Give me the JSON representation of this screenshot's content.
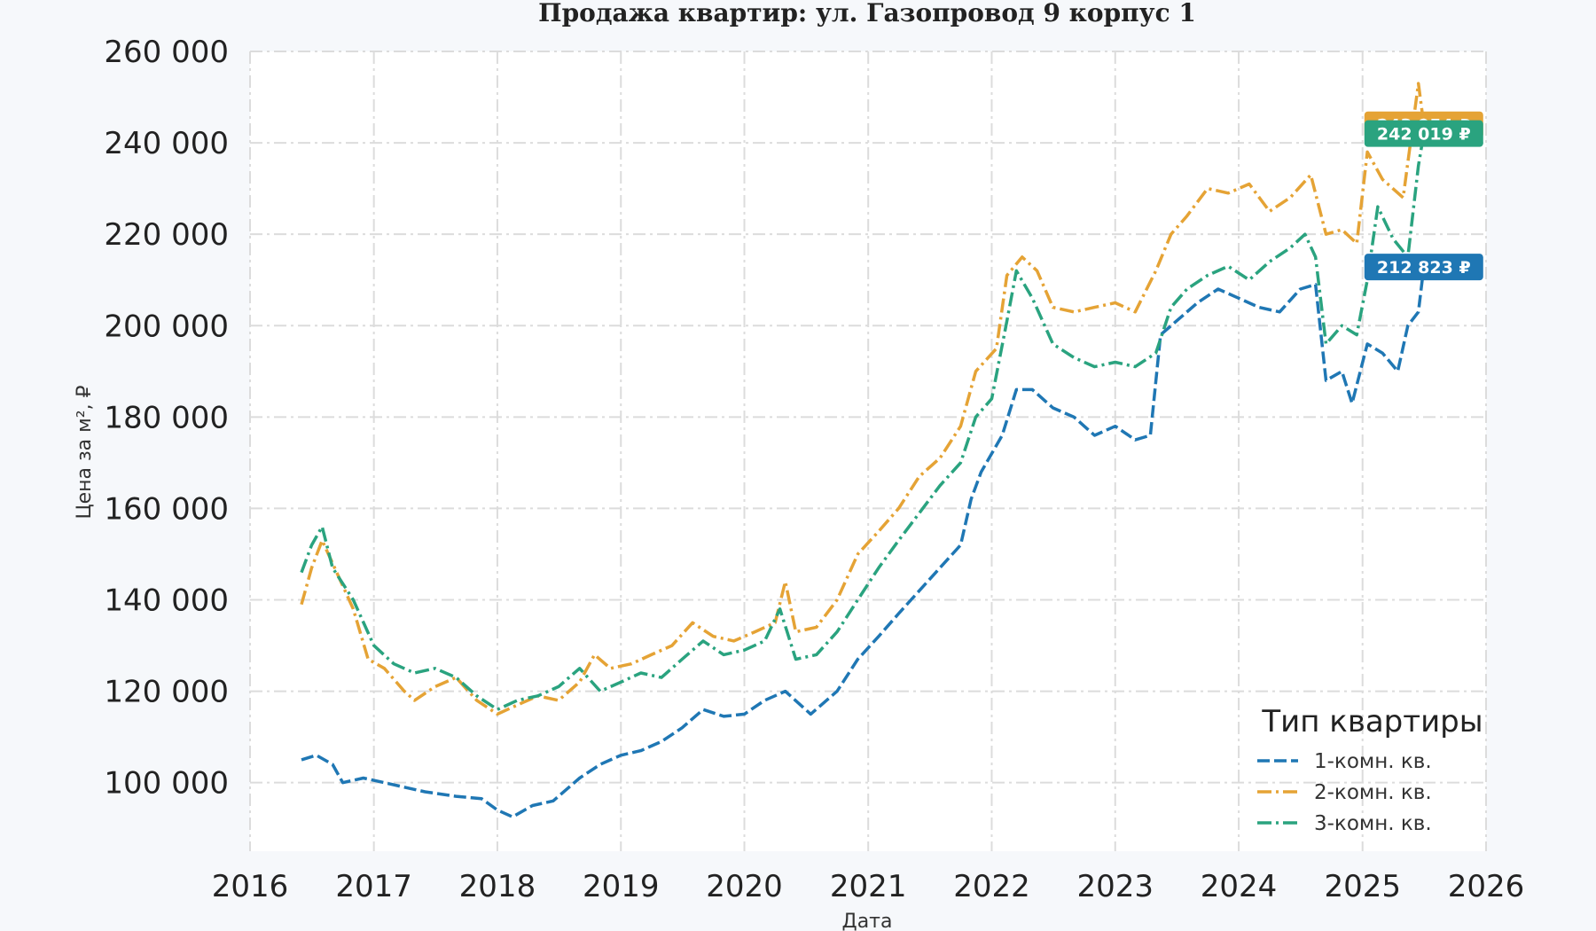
{
  "chart_data": {
    "type": "line",
    "title": "Продажа квартир: ул. Газопровод 9 корпус 1",
    "xlabel": "Дата",
    "ylabel": "Цена за м², ₽",
    "xlim": [
      "2016-01-01",
      "2026-01-01"
    ],
    "ylim": [
      85000,
      260000
    ],
    "x_ticks": [
      "2016",
      "2017",
      "2018",
      "2019",
      "2020",
      "2021",
      "2022",
      "2023",
      "2024",
      "2025",
      "2026"
    ],
    "y_ticks": [
      100000,
      120000,
      140000,
      160000,
      180000,
      200000,
      220000,
      240000,
      260000
    ],
    "y_tick_labels": [
      "100 000",
      "120 000",
      "140 000",
      "160 000",
      "180 000",
      "200 000",
      "220 000",
      "240 000",
      "260 000"
    ],
    "grid": true,
    "legend": {
      "title": "Тип квартиры",
      "placement": "lower-right"
    },
    "series": [
      {
        "name": "1-комн. кв.",
        "color": "#1f77b4",
        "dash": "dashed",
        "end_label": "212 823 ₽",
        "points": [
          [
            "2016-06-01",
            105000
          ],
          [
            "2016-07-15",
            106000
          ],
          [
            "2016-09-01",
            104000
          ],
          [
            "2016-10-01",
            100000
          ],
          [
            "2016-12-01",
            101000
          ],
          [
            "2017-02-01",
            100000
          ],
          [
            "2017-04-01",
            99000
          ],
          [
            "2017-06-01",
            98000
          ],
          [
            "2017-09-01",
            97000
          ],
          [
            "2017-11-15",
            96500
          ],
          [
            "2018-01-01",
            94000
          ],
          [
            "2018-02-15",
            92500
          ],
          [
            "2018-04-15",
            95000
          ],
          [
            "2018-06-15",
            96000
          ],
          [
            "2018-09-01",
            101000
          ],
          [
            "2018-11-01",
            104000
          ],
          [
            "2019-01-01",
            106000
          ],
          [
            "2019-03-01",
            107000
          ],
          [
            "2019-05-01",
            109000
          ],
          [
            "2019-07-01",
            112000
          ],
          [
            "2019-09-01",
            116000
          ],
          [
            "2019-11-01",
            114500
          ],
          [
            "2020-01-01",
            115000
          ],
          [
            "2020-03-01",
            118000
          ],
          [
            "2020-05-01",
            120000
          ],
          [
            "2020-07-15",
            115000
          ],
          [
            "2020-10-01",
            120000
          ],
          [
            "2020-12-01",
            127000
          ],
          [
            "2021-02-01",
            132000
          ],
          [
            "2021-04-01",
            137000
          ],
          [
            "2021-06-01",
            142000
          ],
          [
            "2021-08-01",
            147000
          ],
          [
            "2021-10-01",
            152000
          ],
          [
            "2021-11-01",
            162000
          ],
          [
            "2021-12-01",
            168000
          ],
          [
            "2022-02-01",
            176000
          ],
          [
            "2022-03-15",
            186000
          ],
          [
            "2022-05-01",
            186000
          ],
          [
            "2022-07-01",
            182000
          ],
          [
            "2022-09-01",
            180000
          ],
          [
            "2022-11-01",
            176000
          ],
          [
            "2023-01-01",
            178000
          ],
          [
            "2023-03-01",
            175000
          ],
          [
            "2023-04-15",
            176000
          ],
          [
            "2023-05-15",
            198000
          ],
          [
            "2023-07-01",
            201000
          ],
          [
            "2023-09-01",
            205000
          ],
          [
            "2023-11-01",
            208000
          ],
          [
            "2024-01-01",
            206000
          ],
          [
            "2024-03-01",
            204000
          ],
          [
            "2024-05-01",
            203000
          ],
          [
            "2024-07-01",
            208000
          ],
          [
            "2024-08-15",
            209000
          ],
          [
            "2024-09-15",
            188000
          ],
          [
            "2024-11-01",
            190000
          ],
          [
            "2024-12-01",
            183000
          ],
          [
            "2025-01-15",
            196000
          ],
          [
            "2025-03-01",
            194000
          ],
          [
            "2025-04-15",
            190000
          ],
          [
            "2025-05-15",
            200000
          ],
          [
            "2025-06-15",
            203000
          ],
          [
            "2025-07-01",
            212823
          ]
        ]
      },
      {
        "name": "2-комн. кв.",
        "color": "#e5a335",
        "dash": "dashdot",
        "end_label": "243 954 ₽",
        "points": [
          [
            "2016-06-01",
            139000
          ],
          [
            "2016-07-01",
            147000
          ],
          [
            "2016-08-01",
            153000
          ],
          [
            "2016-09-01",
            148000
          ],
          [
            "2016-11-01",
            138000
          ],
          [
            "2016-12-15",
            127000
          ],
          [
            "2017-02-01",
            125000
          ],
          [
            "2017-04-01",
            120000
          ],
          [
            "2017-05-01",
            118000
          ],
          [
            "2017-07-01",
            121000
          ],
          [
            "2017-09-01",
            123000
          ],
          [
            "2017-11-01",
            118000
          ],
          [
            "2018-01-01",
            115000
          ],
          [
            "2018-03-01",
            117000
          ],
          [
            "2018-05-01",
            119000
          ],
          [
            "2018-07-01",
            118000
          ],
          [
            "2018-09-01",
            122000
          ],
          [
            "2018-10-15",
            128000
          ],
          [
            "2018-12-01",
            125000
          ],
          [
            "2019-02-01",
            126000
          ],
          [
            "2019-04-01",
            128000
          ],
          [
            "2019-06-01",
            130000
          ],
          [
            "2019-08-01",
            135000
          ],
          [
            "2019-10-01",
            132000
          ],
          [
            "2019-12-01",
            131000
          ],
          [
            "2020-02-01",
            133000
          ],
          [
            "2020-04-01",
            135000
          ],
          [
            "2020-05-01",
            144000
          ],
          [
            "2020-06-01",
            133000
          ],
          [
            "2020-08-01",
            134000
          ],
          [
            "2020-10-01",
            140000
          ],
          [
            "2020-12-01",
            150000
          ],
          [
            "2021-02-01",
            155000
          ],
          [
            "2021-04-01",
            160000
          ],
          [
            "2021-06-01",
            167000
          ],
          [
            "2021-08-01",
            171000
          ],
          [
            "2021-10-01",
            178000
          ],
          [
            "2021-11-15",
            190000
          ],
          [
            "2022-01-15",
            195000
          ],
          [
            "2022-02-15",
            211000
          ],
          [
            "2022-04-01",
            215000
          ],
          [
            "2022-05-15",
            212000
          ],
          [
            "2022-07-01",
            204000
          ],
          [
            "2022-09-01",
            203000
          ],
          [
            "2022-11-01",
            204000
          ],
          [
            "2023-01-01",
            205000
          ],
          [
            "2023-03-01",
            203000
          ],
          [
            "2023-05-01",
            212000
          ],
          [
            "2023-06-15",
            220000
          ],
          [
            "2023-08-01",
            224000
          ],
          [
            "2023-10-01",
            230000
          ],
          [
            "2023-12-01",
            229000
          ],
          [
            "2024-02-01",
            231000
          ],
          [
            "2024-04-01",
            225000
          ],
          [
            "2024-06-01",
            228000
          ],
          [
            "2024-08-01",
            233000
          ],
          [
            "2024-09-15",
            220000
          ],
          [
            "2024-11-01",
            221000
          ],
          [
            "2024-12-15",
            218000
          ],
          [
            "2025-01-15",
            238000
          ],
          [
            "2025-03-01",
            232000
          ],
          [
            "2025-05-01",
            228000
          ],
          [
            "2025-06-15",
            253000
          ],
          [
            "2025-07-01",
            243954
          ]
        ]
      },
      {
        "name": "3-комн. кв.",
        "color": "#2aa37f",
        "dash": "dashdot",
        "end_label": "242 019 ₽",
        "points": [
          [
            "2016-06-01",
            146000
          ],
          [
            "2016-07-01",
            152000
          ],
          [
            "2016-08-01",
            156000
          ],
          [
            "2016-09-01",
            147000
          ],
          [
            "2016-11-01",
            140000
          ],
          [
            "2017-01-01",
            130000
          ],
          [
            "2017-03-01",
            126000
          ],
          [
            "2017-05-01",
            124000
          ],
          [
            "2017-07-01",
            125000
          ],
          [
            "2017-09-01",
            123000
          ],
          [
            "2017-11-01",
            119000
          ],
          [
            "2018-01-01",
            116000
          ],
          [
            "2018-03-01",
            118000
          ],
          [
            "2018-05-01",
            119000
          ],
          [
            "2018-07-01",
            121000
          ],
          [
            "2018-09-01",
            125000
          ],
          [
            "2018-11-01",
            120000
          ],
          [
            "2019-01-01",
            122000
          ],
          [
            "2019-03-01",
            124000
          ],
          [
            "2019-05-01",
            123000
          ],
          [
            "2019-07-01",
            127000
          ],
          [
            "2019-09-01",
            131000
          ],
          [
            "2019-11-01",
            128000
          ],
          [
            "2020-01-01",
            129000
          ],
          [
            "2020-03-01",
            131000
          ],
          [
            "2020-04-15",
            138000
          ],
          [
            "2020-06-01",
            127000
          ],
          [
            "2020-08-01",
            128000
          ],
          [
            "2020-10-01",
            133000
          ],
          [
            "2020-12-01",
            140000
          ],
          [
            "2021-02-01",
            147000
          ],
          [
            "2021-04-01",
            153000
          ],
          [
            "2021-06-01",
            159000
          ],
          [
            "2021-08-01",
            165000
          ],
          [
            "2021-10-01",
            170000
          ],
          [
            "2021-11-15",
            180000
          ],
          [
            "2022-01-01",
            184000
          ],
          [
            "2022-02-15",
            201000
          ],
          [
            "2022-03-15",
            212000
          ],
          [
            "2022-05-01",
            206000
          ],
          [
            "2022-07-01",
            196000
          ],
          [
            "2022-09-01",
            193000
          ],
          [
            "2022-11-01",
            191000
          ],
          [
            "2023-01-01",
            192000
          ],
          [
            "2023-03-01",
            191000
          ],
          [
            "2023-05-01",
            194000
          ],
          [
            "2023-06-15",
            204000
          ],
          [
            "2023-08-01",
            208000
          ],
          [
            "2023-10-01",
            211000
          ],
          [
            "2023-12-01",
            213000
          ],
          [
            "2024-02-01",
            210000
          ],
          [
            "2024-04-01",
            214000
          ],
          [
            "2024-06-01",
            217000
          ],
          [
            "2024-07-15",
            220000
          ],
          [
            "2024-08-15",
            215000
          ],
          [
            "2024-09-15",
            196000
          ],
          [
            "2024-11-01",
            200000
          ],
          [
            "2024-12-15",
            198000
          ],
          [
            "2025-01-15",
            210000
          ],
          [
            "2025-02-15",
            226000
          ],
          [
            "2025-04-01",
            219000
          ],
          [
            "2025-05-15",
            215000
          ],
          [
            "2025-06-15",
            235000
          ],
          [
            "2025-07-01",
            242019
          ]
        ]
      }
    ]
  }
}
